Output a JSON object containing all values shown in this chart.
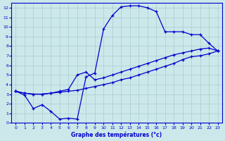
{
  "title": "Graphe des températures (°c)",
  "bg_color": "#cce8ea",
  "grid_color": "#aacccc",
  "line_color": "#0000cc",
  "xlim": [
    -0.5,
    23.5
  ],
  "ylim": [
    0,
    12.5
  ],
  "xticks": [
    0,
    1,
    2,
    3,
    4,
    5,
    6,
    7,
    8,
    9,
    10,
    11,
    12,
    13,
    14,
    15,
    16,
    17,
    18,
    19,
    20,
    21,
    22,
    23
  ],
  "yticks": [
    0,
    1,
    2,
    3,
    4,
    5,
    6,
    7,
    8,
    9,
    10,
    11,
    12
  ],
  "line1_x": [
    0,
    1,
    2,
    3,
    4,
    5,
    6,
    7,
    8,
    9,
    10,
    11,
    12,
    13,
    14,
    15,
    16,
    17,
    18,
    19,
    20,
    21,
    22,
    23
  ],
  "line1_y": [
    3.3,
    2.9,
    1.5,
    1.9,
    1.2,
    0.4,
    0.5,
    0.4,
    4.8,
    5.2,
    9.8,
    11.2,
    12.1,
    12.2,
    12.2,
    12.0,
    11.6,
    9.5,
    9.5,
    9.5,
    9.2,
    9.2,
    8.3,
    7.5
  ],
  "line2_x": [
    0,
    1,
    2,
    3,
    4,
    5,
    6,
    7,
    8,
    9,
    10,
    11,
    12,
    13,
    14,
    15,
    16,
    17,
    18,
    19,
    20,
    21,
    22,
    23
  ],
  "line2_y": [
    3.3,
    3.1,
    3.0,
    3.0,
    3.1,
    3.2,
    3.3,
    3.4,
    3.6,
    3.8,
    4.0,
    4.2,
    4.5,
    4.7,
    5.0,
    5.3,
    5.6,
    5.9,
    6.2,
    6.6,
    6.9,
    7.0,
    7.2,
    7.5
  ],
  "line3_x": [
    0,
    1,
    2,
    3,
    4,
    5,
    6,
    7,
    8,
    9,
    10,
    11,
    12,
    13,
    14,
    15,
    16,
    17,
    18,
    19,
    20,
    21,
    22,
    23
  ],
  "line3_y": [
    3.3,
    3.1,
    3.0,
    3.0,
    3.1,
    3.3,
    3.5,
    5.0,
    5.3,
    4.5,
    4.7,
    5.0,
    5.3,
    5.6,
    5.9,
    6.2,
    6.5,
    6.8,
    7.1,
    7.3,
    7.5,
    7.7,
    7.8,
    7.5
  ]
}
